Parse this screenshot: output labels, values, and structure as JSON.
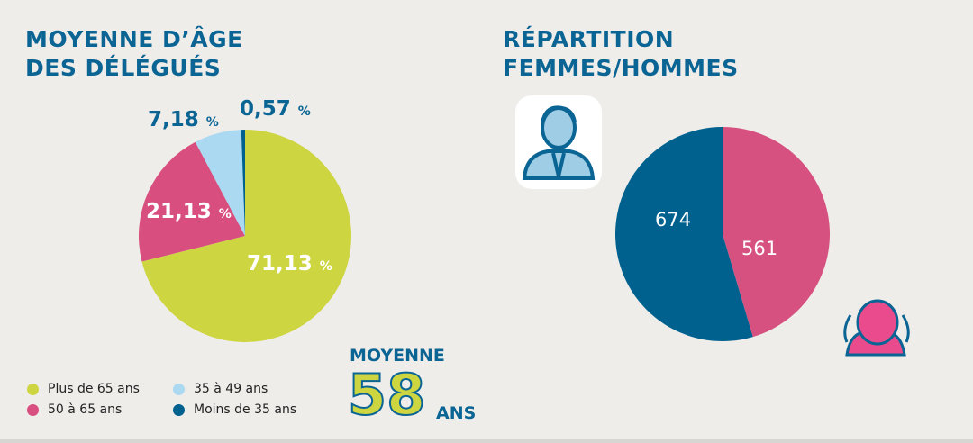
{
  "chart_data": [
    {
      "type": "pie",
      "title": "MOYENNE D'ÂGE\nDES DÉLÉGUÉS",
      "slices": [
        {
          "name": "Plus de 65 ans",
          "value": 71.13,
          "label": "71,13",
          "color": "#cdd541"
        },
        {
          "name": "50 à 65 ans",
          "value": 21.13,
          "label": "21,13",
          "color": "#d84f7f"
        },
        {
          "name": "35 à 49 ans",
          "value": 7.18,
          "label": "7,18",
          "color": "#abd9f1"
        },
        {
          "name": "Moins de 35 ans",
          "value": 0.57,
          "label": "0,57",
          "color": "#00618f"
        }
      ],
      "unit": "%",
      "legend": "bottom"
    },
    {
      "type": "pie",
      "title": "RÉPARTITION\nFEMMES/HOMMES",
      "slices": [
        {
          "name": "Femmes",
          "value": 561,
          "label": "561",
          "color": "#d6517f"
        },
        {
          "name": "Hommes",
          "value": 674,
          "label": "674",
          "color": "#00618f"
        }
      ]
    }
  ],
  "titles": {
    "age_line1": "MOYENNE D’ÂGE",
    "age_line2": "DES DÉLÉGUÉS",
    "rep_line1": "RÉPARTITION",
    "rep_line2": "FEMMES/HOMMES"
  },
  "average": {
    "label": "MOYENNE",
    "value": "58",
    "unit": "ANS"
  },
  "percent_sign": "%",
  "icons": [
    "man-icon",
    "woman-icon"
  ]
}
